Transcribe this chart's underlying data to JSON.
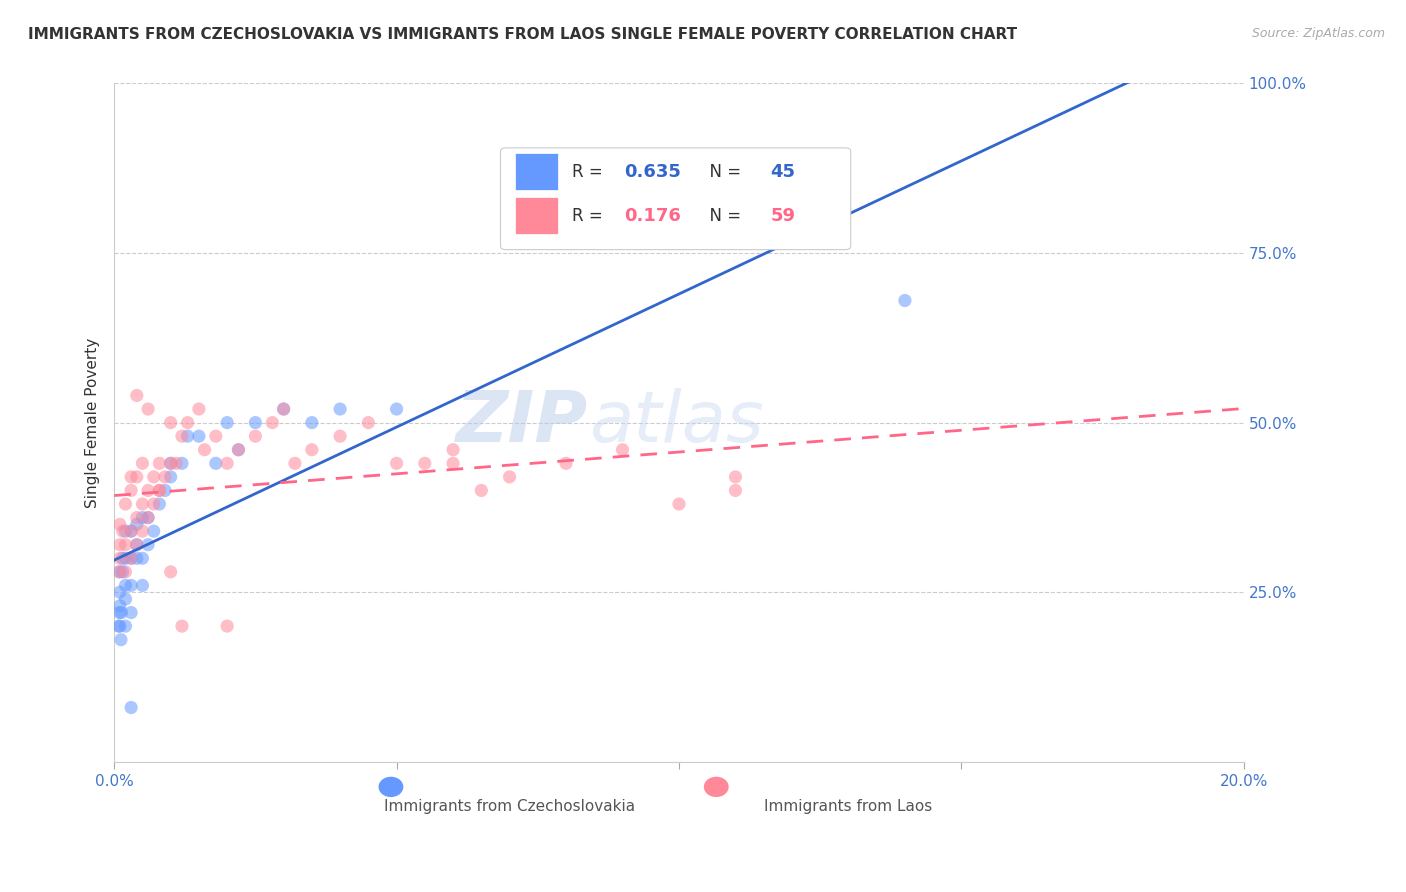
{
  "title": "IMMIGRANTS FROM CZECHOSLOVAKIA VS IMMIGRANTS FROM LAOS SINGLE FEMALE POVERTY CORRELATION CHART",
  "source": "Source: ZipAtlas.com",
  "xlim": [
    0.0,
    0.2
  ],
  "ylim": [
    0.0,
    1.0
  ],
  "legend1_R": "0.635",
  "legend1_N": "45",
  "legend2_R": "0.176",
  "legend2_N": "59",
  "label1": "Immigrants from Czechoslovakia",
  "label2": "Immigrants from Laos",
  "color1": "#6699ff",
  "color2": "#ff8899",
  "trendline1_color": "#3366cc",
  "trendline2_color": "#ff6688",
  "watermark": "ZIPatlas",
  "watermark_color": "#c8d8f0",
  "czecho_x": [
    0.0008,
    0.0009,
    0.001,
    0.001,
    0.001,
    0.001,
    0.0012,
    0.0013,
    0.0015,
    0.0015,
    0.002,
    0.002,
    0.002,
    0.002,
    0.002,
    0.003,
    0.003,
    0.003,
    0.003,
    0.004,
    0.004,
    0.004,
    0.005,
    0.005,
    0.005,
    0.006,
    0.006,
    0.007,
    0.008,
    0.009,
    0.01,
    0.01,
    0.012,
    0.013,
    0.015,
    0.018,
    0.02,
    0.022,
    0.025,
    0.03,
    0.035,
    0.04,
    0.05,
    0.14,
    0.003
  ],
  "czecho_y": [
    0.2,
    0.22,
    0.25,
    0.28,
    0.2,
    0.23,
    0.18,
    0.22,
    0.28,
    0.3,
    0.2,
    0.24,
    0.26,
    0.3,
    0.34,
    0.22,
    0.26,
    0.3,
    0.34,
    0.3,
    0.32,
    0.35,
    0.26,
    0.3,
    0.36,
    0.32,
    0.36,
    0.34,
    0.38,
    0.4,
    0.42,
    0.44,
    0.44,
    0.48,
    0.48,
    0.44,
    0.5,
    0.46,
    0.5,
    0.52,
    0.5,
    0.52,
    0.52,
    0.68,
    0.08
  ],
  "laos_x": [
    0.0008,
    0.001,
    0.001,
    0.001,
    0.0015,
    0.002,
    0.002,
    0.002,
    0.003,
    0.003,
    0.003,
    0.004,
    0.004,
    0.004,
    0.005,
    0.005,
    0.005,
    0.006,
    0.006,
    0.007,
    0.007,
    0.008,
    0.008,
    0.009,
    0.01,
    0.01,
    0.011,
    0.012,
    0.013,
    0.015,
    0.016,
    0.018,
    0.02,
    0.022,
    0.025,
    0.028,
    0.03,
    0.032,
    0.035,
    0.04,
    0.045,
    0.05,
    0.055,
    0.06,
    0.065,
    0.07,
    0.08,
    0.09,
    0.1,
    0.11,
    0.06,
    0.003,
    0.004,
    0.006,
    0.008,
    0.01,
    0.012,
    0.02,
    0.11
  ],
  "laos_y": [
    0.28,
    0.3,
    0.32,
    0.35,
    0.34,
    0.28,
    0.32,
    0.38,
    0.3,
    0.34,
    0.4,
    0.32,
    0.36,
    0.42,
    0.34,
    0.38,
    0.44,
    0.36,
    0.4,
    0.38,
    0.42,
    0.4,
    0.44,
    0.42,
    0.44,
    0.5,
    0.44,
    0.48,
    0.5,
    0.52,
    0.46,
    0.48,
    0.44,
    0.46,
    0.48,
    0.5,
    0.52,
    0.44,
    0.46,
    0.48,
    0.5,
    0.44,
    0.44,
    0.46,
    0.4,
    0.42,
    0.44,
    0.46,
    0.38,
    0.4,
    0.44,
    0.42,
    0.54,
    0.52,
    0.4,
    0.28,
    0.2,
    0.2,
    0.42
  ]
}
